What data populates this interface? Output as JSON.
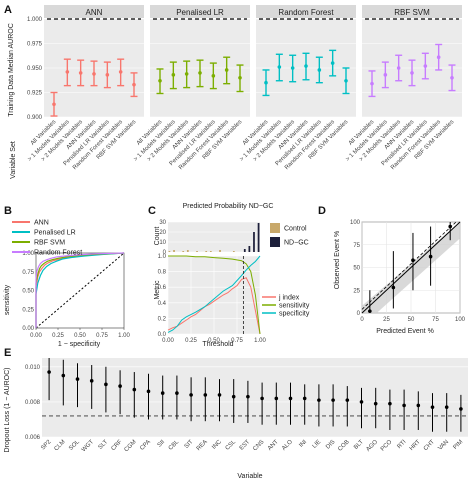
{
  "panels": {
    "a": "A",
    "b": "B",
    "c": "C",
    "d": "D",
    "e": "E"
  },
  "chart_data": [
    {
      "id": "A",
      "type": "scatter",
      "ylabel": "Training Data Median AUROC",
      "xlabel": "Variable Set",
      "ylim": [
        0.9,
        1.0
      ],
      "yticks": [
        0.9,
        0.925,
        0.95,
        0.975,
        1.0
      ],
      "ytick_labels": [
        "0.900",
        "0.925",
        "0.950",
        "0.975",
        "1.000"
      ],
      "reference_line": 1.0,
      "categories": [
        "All Variables",
        "> 1 Models Variables",
        "> 2 Models Variables",
        "ANN Variables",
        "Penalised LR Variables",
        "Random Forest Variables",
        "RBF SVM Variables"
      ],
      "facets": [
        {
          "name": "ANN",
          "color": "#f8766d",
          "median": [
            0.913,
            0.946,
            0.945,
            0.944,
            0.943,
            0.946,
            0.933
          ],
          "low": [
            0.901,
            0.932,
            0.932,
            0.932,
            0.93,
            0.932,
            0.921
          ],
          "high": [
            0.925,
            0.959,
            0.958,
            0.957,
            0.956,
            0.959,
            0.945
          ]
        },
        {
          "name": "Penalised LR",
          "color": "#7cae00",
          "median": [
            0.937,
            0.943,
            0.944,
            0.945,
            0.942,
            0.948,
            0.94
          ],
          "low": [
            0.924,
            0.929,
            0.93,
            0.931,
            0.929,
            0.934,
            0.926
          ],
          "high": [
            0.949,
            0.956,
            0.957,
            0.958,
            0.955,
            0.961,
            0.953
          ]
        },
        {
          "name": "Random Forest",
          "color": "#00bfc4",
          "median": [
            0.935,
            0.951,
            0.95,
            0.952,
            0.948,
            0.955,
            0.937
          ],
          "low": [
            0.922,
            0.937,
            0.936,
            0.938,
            0.935,
            0.942,
            0.924
          ],
          "high": [
            0.948,
            0.964,
            0.963,
            0.965,
            0.961,
            0.968,
            0.95
          ]
        },
        {
          "name": "RBF SVM",
          "color": "#c77cff",
          "median": [
            0.934,
            0.943,
            0.95,
            0.945,
            0.952,
            0.961,
            0.94
          ],
          "low": [
            0.921,
            0.93,
            0.937,
            0.932,
            0.939,
            0.948,
            0.927
          ],
          "high": [
            0.947,
            0.956,
            0.963,
            0.958,
            0.965,
            0.974,
            0.953
          ]
        }
      ]
    },
    {
      "id": "B",
      "type": "line",
      "xlabel": "1 − specificity",
      "ylabel": "sensitivity",
      "xlim": [
        0,
        1
      ],
      "ylim": [
        0,
        1
      ],
      "ticks": [
        0.0,
        0.25,
        0.5,
        0.75,
        1.0
      ],
      "tick_labels": [
        "0.00",
        "0.25",
        "0.50",
        "0.75",
        "1.00"
      ],
      "legend": "top-left",
      "series": [
        {
          "name": "ANN",
          "color": "#f8766d",
          "x": [
            0,
            0,
            0.02,
            0.04,
            0.07,
            0.1,
            0.14,
            0.2,
            0.27,
            0.35,
            0.5,
            0.7,
            1.0
          ],
          "y": [
            0,
            0.55,
            0.68,
            0.75,
            0.8,
            0.84,
            0.87,
            0.9,
            0.92,
            0.94,
            0.96,
            0.98,
            1.0
          ]
        },
        {
          "name": "Penalised LR",
          "color": "#00bfc4",
          "x": [
            0,
            0,
            0.02,
            0.05,
            0.08,
            0.12,
            0.17,
            0.23,
            0.3,
            0.4,
            0.55,
            0.75,
            1.0
          ],
          "y": [
            0,
            0.45,
            0.6,
            0.7,
            0.77,
            0.82,
            0.86,
            0.89,
            0.92,
            0.94,
            0.96,
            0.98,
            1.0
          ]
        },
        {
          "name": "RBF SVM",
          "color": "#7cae00",
          "x": [
            0,
            0,
            0.02,
            0.04,
            0.06,
            0.09,
            0.13,
            0.18,
            0.25,
            0.35,
            0.5,
            0.7,
            1.0
          ],
          "y": [
            0,
            0.6,
            0.72,
            0.79,
            0.83,
            0.86,
            0.89,
            0.91,
            0.93,
            0.95,
            0.97,
            0.985,
            1.0
          ]
        },
        {
          "name": "Random Forest",
          "color": "#c77cff",
          "x": [
            0,
            0,
            0.01,
            0.03,
            0.05,
            0.08,
            0.12,
            0.17,
            0.24,
            0.33,
            0.48,
            0.68,
            1.0
          ],
          "y": [
            0,
            0.65,
            0.76,
            0.82,
            0.86,
            0.89,
            0.91,
            0.93,
            0.95,
            0.96,
            0.975,
            0.99,
            1.0
          ]
        }
      ]
    },
    {
      "id": "C",
      "type": "bar",
      "title": "Predicted Probability ND−GC",
      "ylabel_top": "Count",
      "ylabel_bottom": "Metric",
      "xlabel": "Threshold",
      "xlim": [
        0,
        1
      ],
      "xticks": [
        0.0,
        0.25,
        0.5,
        0.75,
        1.0
      ],
      "xtick_labels": [
        "0.00",
        "0.25",
        "0.50",
        "0.75",
        "1.00"
      ],
      "count_ylim": [
        0,
        30
      ],
      "count_yticks": [
        0,
        10,
        20,
        30
      ],
      "metric_ylim": [
        0,
        1
      ],
      "metric_yticks": [
        0.0,
        0.2,
        0.4,
        0.6,
        0.8,
        1.0
      ],
      "metric_ytick_labels": [
        "0.0",
        "0.2",
        "0.4",
        "0.6",
        "0.8",
        "1.0"
      ],
      "threshold_line": 0.82,
      "bins": [
        0.025,
        0.075,
        0.125,
        0.175,
        0.225,
        0.275,
        0.325,
        0.375,
        0.425,
        0.475,
        0.525,
        0.575,
        0.625,
        0.675,
        0.725,
        0.775,
        0.825,
        0.875,
        0.925,
        0.975
      ],
      "count_series": [
        {
          "name": "Control",
          "color": "#c8a86a",
          "values": [
            1,
            2,
            0,
            1,
            2,
            0,
            1,
            0,
            1,
            1,
            0,
            2,
            0,
            0,
            1,
            0,
            0,
            0,
            0,
            0
          ]
        },
        {
          "name": "ND−GC",
          "color": "#1d1f3a",
          "values": [
            0,
            0,
            0,
            0,
            0,
            0,
            0,
            0,
            0,
            0,
            0,
            0,
            0,
            0,
            0,
            0,
            3,
            6,
            20,
            29
          ]
        }
      ],
      "metric_series": [
        {
          "name": "j index",
          "color": "#f8766d",
          "x": [
            0,
            0.05,
            0.1,
            0.15,
            0.2,
            0.25,
            0.3,
            0.35,
            0.4,
            0.45,
            0.5,
            0.55,
            0.6,
            0.65,
            0.7,
            0.75,
            0.8,
            0.85,
            0.9,
            0.95,
            1.0
          ],
          "y": [
            0.05,
            0.08,
            0.1,
            0.14,
            0.18,
            0.22,
            0.25,
            0.3,
            0.35,
            0.38,
            0.42,
            0.46,
            0.5,
            0.53,
            0.58,
            0.62,
            0.7,
            0.72,
            0.6,
            0.3,
            0.0
          ]
        },
        {
          "name": "sensitivity",
          "color": "#7cae00",
          "x": [
            0,
            0.1,
            0.2,
            0.3,
            0.4,
            0.5,
            0.6,
            0.7,
            0.8,
            0.85,
            0.9,
            0.95,
            1.0
          ],
          "y": [
            1.0,
            1.0,
            1.0,
            0.99,
            0.99,
            0.98,
            0.97,
            0.96,
            0.94,
            0.9,
            0.8,
            0.5,
            0.0
          ]
        },
        {
          "name": "specificity",
          "color": "#00bfc4",
          "x": [
            0,
            0.05,
            0.1,
            0.15,
            0.2,
            0.3,
            0.4,
            0.5,
            0.6,
            0.7,
            0.8,
            0.85,
            0.9,
            0.95,
            1.0
          ],
          "y": [
            0.02,
            0.05,
            0.1,
            0.18,
            0.22,
            0.28,
            0.35,
            0.45,
            0.55,
            0.62,
            0.75,
            0.82,
            0.88,
            0.93,
            1.0
          ]
        }
      ]
    },
    {
      "id": "D",
      "type": "scatter",
      "xlabel": "Predicted Event %",
      "ylabel": "Observed Event %",
      "xlim": [
        0,
        100
      ],
      "ylim": [
        0,
        100
      ],
      "xticks": [
        0,
        25,
        50,
        75,
        100
      ],
      "yticks": [
        0,
        25,
        50,
        75,
        100
      ],
      "x": [
        8,
        32,
        52,
        70,
        90
      ],
      "y": [
        2,
        28,
        58,
        62,
        95
      ],
      "low": [
        0,
        5,
        25,
        30,
        80
      ],
      "high": [
        25,
        68,
        88,
        95,
        100
      ]
    },
    {
      "id": "E",
      "type": "scatter",
      "xlabel": "Variable",
      "ylabel": "Dropout Loss (1 − AUROC)",
      "ylim": [
        0.006,
        0.0105
      ],
      "yticks": [
        0.006,
        0.008,
        0.01
      ],
      "ytick_labels": [
        "0.006",
        "0.008",
        "0.010"
      ],
      "reference_line": 0.0072,
      "categories": [
        "SP2",
        "CLM",
        "SOL",
        "WGT",
        "SLT",
        "CRF",
        "CGM",
        "CPA",
        "SII",
        "CBL",
        "SIT",
        "REA",
        "INC",
        "CSL",
        "EST",
        "CNS",
        "ANT",
        "ALO",
        "INI",
        "LIE",
        "DIS",
        "COB",
        "BLT",
        "AGO",
        "PCO",
        "RTI",
        "HRT",
        "CHT",
        "VAN",
        "PIM"
      ],
      "values": [
        0.0097,
        0.0095,
        0.0093,
        0.0092,
        0.009,
        0.0089,
        0.0087,
        0.0086,
        0.0085,
        0.0085,
        0.0084,
        0.0084,
        0.0084,
        0.0083,
        0.0083,
        0.0082,
        0.0082,
        0.0082,
        0.0082,
        0.0081,
        0.0081,
        0.0081,
        0.008,
        0.0079,
        0.0079,
        0.0078,
        0.0078,
        0.0077,
        0.0077,
        0.0076
      ],
      "low": [
        0.0081,
        0.0078,
        0.0077,
        0.0076,
        0.0074,
        0.0073,
        0.0071,
        0.007,
        0.007,
        0.007,
        0.0069,
        0.0069,
        0.0069,
        0.0068,
        0.0068,
        0.0067,
        0.0067,
        0.0067,
        0.0067,
        0.0066,
        0.0066,
        0.0066,
        0.0065,
        0.0065,
        0.0064,
        0.0064,
        0.0064,
        0.0063,
        0.0063,
        0.0063
      ],
      "high": [
        0.0105,
        0.0104,
        0.0102,
        0.0101,
        0.01,
        0.0098,
        0.0097,
        0.0096,
        0.0095,
        0.0095,
        0.0094,
        0.0094,
        0.0093,
        0.0093,
        0.0092,
        0.0091,
        0.0091,
        0.0091,
        0.009,
        0.009,
        0.009,
        0.0089,
        0.0088,
        0.0088,
        0.0087,
        0.0087,
        0.0086,
        0.0085,
        0.0085,
        0.0084
      ]
    }
  ]
}
